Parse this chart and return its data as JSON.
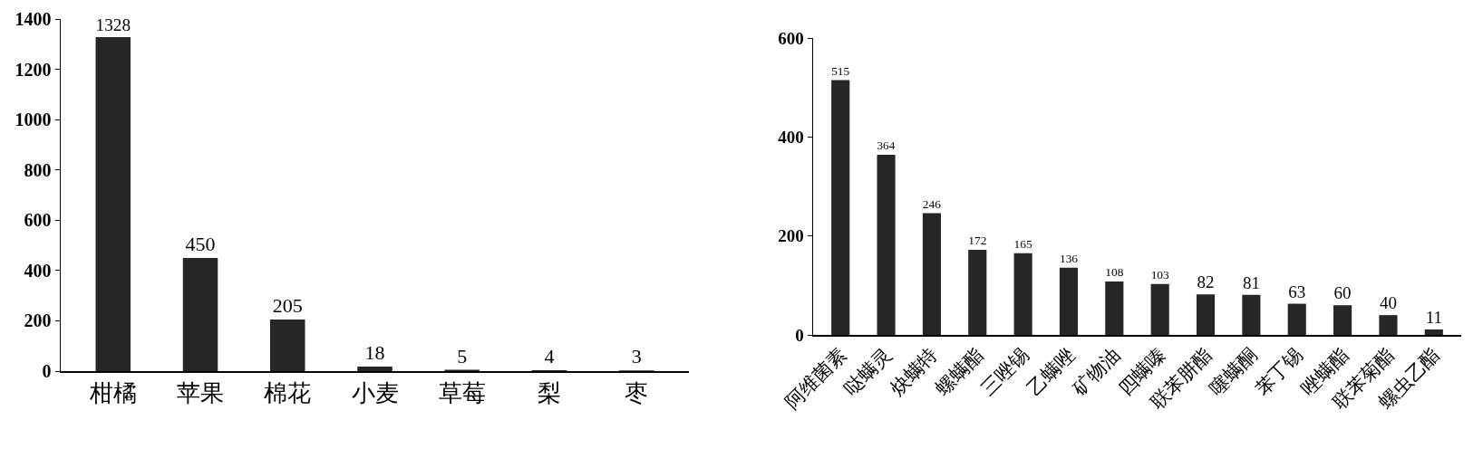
{
  "chart_data": [
    {
      "type": "bar",
      "categories": [
        "柑橘",
        "苹果",
        "棉花",
        "小麦",
        "草莓",
        "梨",
        "枣"
      ],
      "values": [
        1328,
        450,
        205,
        18,
        5,
        4,
        3
      ],
      "color": "#262626",
      "ylim": [
        0,
        1400
      ],
      "yticks": [
        0,
        200,
        400,
        600,
        800,
        1000,
        1200,
        1400
      ],
      "data_labels": true
    },
    {
      "type": "bar",
      "categories": [
        "阿维菌素",
        "哒螨灵",
        "炔螨特",
        "螺螨酯",
        "三唑锡",
        "乙螨唑",
        "矿物油",
        "四螨嗪",
        "联苯肼酯",
        "噻螨酮",
        "苯丁锡",
        "唑螨酯",
        "联苯菊酯",
        "螺虫乙酯"
      ],
      "values": [
        515,
        364,
        246,
        172,
        165,
        136,
        108,
        103,
        82,
        81,
        63,
        60,
        40,
        11
      ],
      "color": "#262626",
      "ylim": [
        0,
        600
      ],
      "yticks": [
        0,
        200,
        400,
        600
      ],
      "data_labels": true
    }
  ]
}
